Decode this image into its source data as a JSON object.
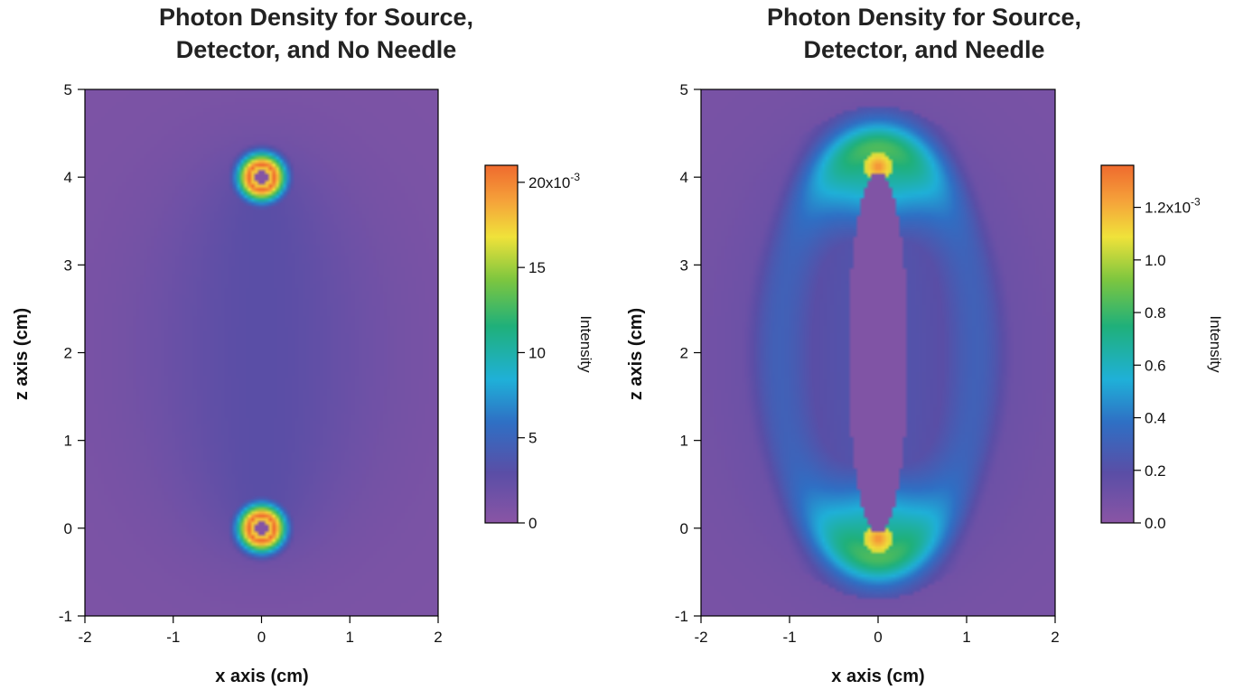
{
  "chart_data": [
    {
      "type": "heatmap",
      "title_lines": [
        "Photon Density for Source,",
        "Detector, and No Needle"
      ],
      "xlabel": "x axis (cm)",
      "ylabel": "z axis (cm)",
      "xlim": [
        -2,
        2
      ],
      "ylim": [
        -1,
        5
      ],
      "xticks": [
        "-2",
        "-1",
        "0",
        "1",
        "2"
      ],
      "yticks": [
        "-1",
        "0",
        "1",
        "2",
        "3",
        "4",
        "5"
      ],
      "hotspots": [
        {
          "x": 0,
          "z": 4
        },
        {
          "x": 0,
          "z": 0
        }
      ],
      "needle": false,
      "colorbar": {
        "label": "Intensity",
        "range": [
          0,
          0.021
        ],
        "ticks": [
          {
            "value": 0,
            "label": "0"
          },
          {
            "value": 0.005,
            "label": "5"
          },
          {
            "value": 0.01,
            "label": "10"
          },
          {
            "value": 0.015,
            "label": "15"
          },
          {
            "value": 0.02,
            "label": "20x10-3"
          }
        ]
      }
    },
    {
      "type": "heatmap",
      "title_lines": [
        "Photon Density for Source,",
        "Detector, and Needle"
      ],
      "xlabel": "x axis (cm)",
      "ylabel": "z axis (cm)",
      "xlim": [
        -2,
        2
      ],
      "ylim": [
        -1,
        5
      ],
      "xticks": [
        "-2",
        "-1",
        "0",
        "1",
        "2"
      ],
      "yticks": [
        "-1",
        "0",
        "1",
        "2",
        "3",
        "4",
        "5"
      ],
      "hotspots": [
        {
          "x": 0,
          "z": 4.1
        },
        {
          "x": 0,
          "z": -0.1
        }
      ],
      "needle": true,
      "colorbar": {
        "label": "Intensity",
        "range": [
          0,
          0.00136
        ],
        "ticks": [
          {
            "value": 0.0,
            "label": "0.0"
          },
          {
            "value": 0.0002,
            "label": "0.2"
          },
          {
            "value": 0.0004,
            "label": "0.4"
          },
          {
            "value": 0.0006,
            "label": "0.6"
          },
          {
            "value": 0.0008,
            "label": "0.8"
          },
          {
            "value": 0.001,
            "label": "1.0"
          },
          {
            "value": 0.0012,
            "label": "1.2x10-3"
          }
        ]
      }
    }
  ]
}
